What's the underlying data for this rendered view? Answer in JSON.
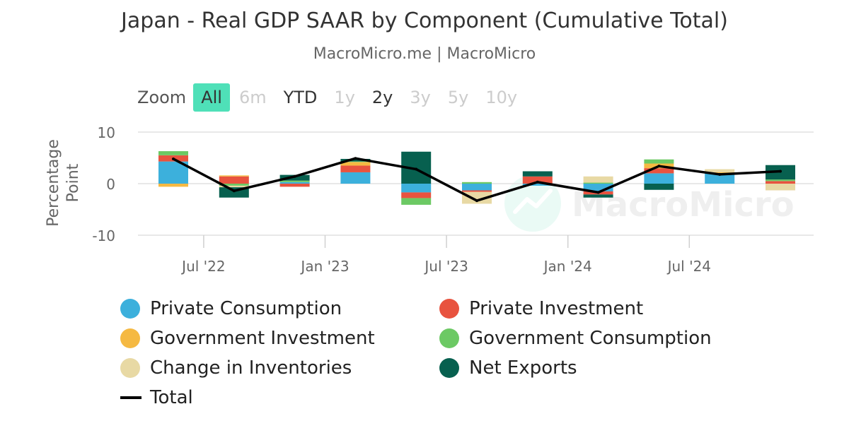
{
  "header": {
    "title": "Japan - Real GDP SAAR by Component (Cumulative Total)",
    "subtitle": "MacroMicro.me | MacroMicro"
  },
  "zoom": {
    "label": "Zoom",
    "buttons": [
      {
        "label": "All",
        "state": "active"
      },
      {
        "label": "6m",
        "state": "disabled"
      },
      {
        "label": "YTD",
        "state": "enabled"
      },
      {
        "label": "1y",
        "state": "disabled"
      },
      {
        "label": "2y",
        "state": "enabled"
      },
      {
        "label": "3y",
        "state": "disabled"
      },
      {
        "label": "5y",
        "state": "disabled"
      },
      {
        "label": "10y",
        "state": "disabled"
      }
    ]
  },
  "watermark": {
    "text": "MacroMicro"
  },
  "chart_data": {
    "type": "bar",
    "stacked": true,
    "title": "Japan - Real GDP SAAR by Component (Cumulative Total)",
    "subtitle": "MacroMicro.me | MacroMicro",
    "ylabel": "Percentage Point",
    "ylim": [
      -10,
      10
    ],
    "yticks": [
      10,
      0,
      -10
    ],
    "xtick_labels": [
      "Jul '22",
      "Jan '23",
      "Jul '23",
      "Jan '24",
      "Jul '24"
    ],
    "xtick_categories": [
      "2022 Q3",
      "2023 Q1",
      "2023 Q3",
      "2024 Q1",
      "2024 Q3"
    ],
    "grid": true,
    "legend_position": "bottom",
    "categories": [
      "2022 Q2",
      "2022 Q3",
      "2022 Q4",
      "2023 Q1",
      "2023 Q2",
      "2023 Q3",
      "2023 Q4",
      "2024 Q1",
      "2024 Q2",
      "2024 Q3",
      "2024 Q4"
    ],
    "series": [
      {
        "name": "Private Consumption",
        "color": "#3cb0dc",
        "values": [
          4.3,
          0.0,
          0.3,
          2.2,
          -1.7,
          -1.3,
          -0.4,
          -1.5,
          2.0,
          2.0,
          0.0
        ]
      },
      {
        "name": "Private Investment",
        "color": "#e8533f",
        "values": [
          1.2,
          1.4,
          -0.6,
          1.3,
          -1.1,
          -0.3,
          1.4,
          -0.6,
          1.0,
          0.0,
          0.5
        ]
      },
      {
        "name": "Government Investment",
        "color": "#f5b942",
        "values": [
          -0.6,
          0.2,
          0.0,
          0.7,
          0.0,
          0.0,
          0.0,
          0.0,
          0.9,
          0.2,
          0.0
        ]
      },
      {
        "name": "Government Consumption",
        "color": "#6cc964",
        "values": [
          0.8,
          -0.4,
          0.3,
          0.1,
          -1.3,
          0.3,
          0.0,
          0.2,
          0.8,
          0.0,
          0.3
        ]
      },
      {
        "name": "Change in Inventories",
        "color": "#e8d9a4",
        "values": [
          0.0,
          -0.3,
          0.0,
          0.0,
          0.0,
          -2.3,
          0.0,
          1.2,
          0.0,
          0.6,
          -1.3
        ]
      },
      {
        "name": "Net Exports",
        "color": "#07604f",
        "values": [
          0.0,
          -2.0,
          1.1,
          0.5,
          6.2,
          0.0,
          1.0,
          -0.6,
          -1.2,
          0.0,
          2.8
        ]
      }
    ],
    "total": {
      "name": "Total",
      "color": "#000000",
      "values": [
        4.8,
        -1.4,
        1.4,
        4.9,
        2.8,
        -3.3,
        0.3,
        -1.7,
        3.4,
        1.8,
        2.4
      ]
    }
  }
}
